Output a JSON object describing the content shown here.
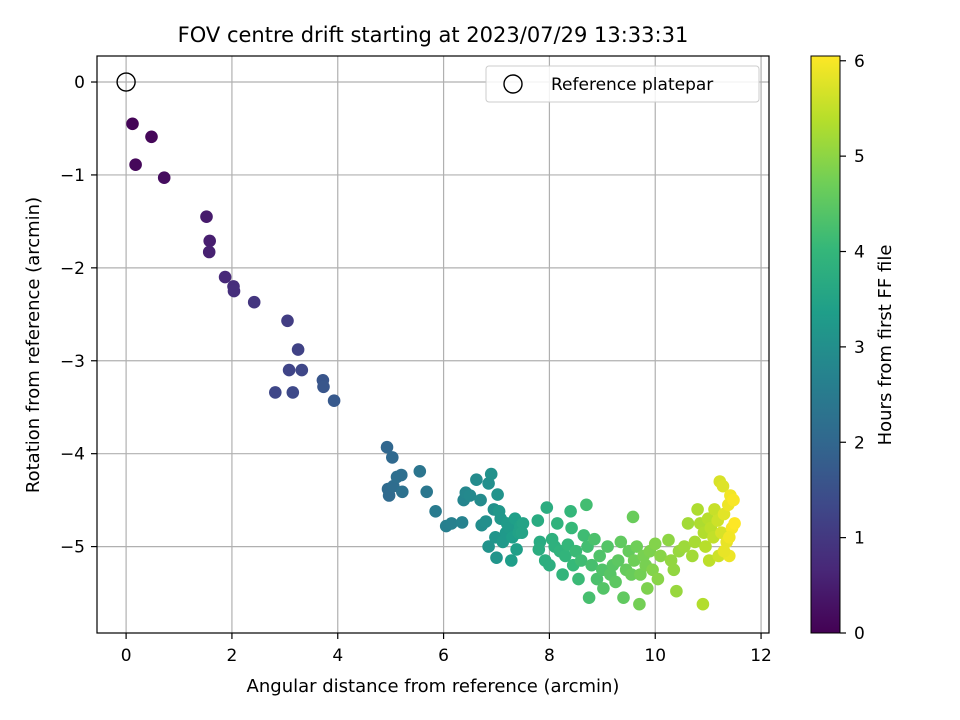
{
  "chart_data": {
    "type": "scatter",
    "title": "FOV centre drift starting at 2023/07/29 13:33:31",
    "xlabel": "Angular distance from reference (arcmin)",
    "ylabel": "Rotation from reference (arcmin)",
    "xlim": [
      -0.55,
      12.15
    ],
    "ylim": [
      -5.93,
      0.28
    ],
    "xticks": [
      0,
      2,
      4,
      6,
      8,
      10,
      12
    ],
    "yticks": [
      0,
      -1,
      -2,
      -3,
      -4,
      -5
    ],
    "xtick_labels": [
      "0",
      "2",
      "4",
      "6",
      "8",
      "10",
      "12"
    ],
    "ytick_labels": [
      "0",
      "−1",
      "−2",
      "−3",
      "−4",
      "−5"
    ],
    "grid": true,
    "legend": {
      "entries": [
        "Reference platepar"
      ],
      "placement": "top-right"
    },
    "reference_point": {
      "x": 0,
      "y": 0,
      "marker": "open-circle",
      "label": "Reference platepar"
    },
    "colorbar": {
      "label": "Hours from first FF file",
      "min": 0,
      "max": 6.05,
      "ticks": [
        0,
        1,
        2,
        3,
        4,
        5,
        6
      ],
      "tick_labels": [
        "0",
        "1",
        "2",
        "3",
        "4",
        "5",
        "6"
      ],
      "colormap": "viridis"
    },
    "colormap_stops": [
      "#440154",
      "#482878",
      "#3e4989",
      "#31688e",
      "#26828e",
      "#1f9e89",
      "#35b779",
      "#6ece58",
      "#b5de2b",
      "#fde725"
    ],
    "points": [
      [
        0.12,
        -0.45,
        0.05
      ],
      [
        0.48,
        -0.59,
        0.1
      ],
      [
        0.18,
        -0.89,
        0.12
      ],
      [
        0.72,
        -1.03,
        0.2
      ],
      [
        1.52,
        -1.45,
        0.45
      ],
      [
        1.58,
        -1.71,
        0.5
      ],
      [
        1.57,
        -1.83,
        0.55
      ],
      [
        1.87,
        -2.1,
        0.7
      ],
      [
        2.03,
        -2.2,
        0.8
      ],
      [
        2.04,
        -2.25,
        0.82
      ],
      [
        2.42,
        -2.37,
        0.95
      ],
      [
        3.05,
        -2.57,
        1.1
      ],
      [
        3.25,
        -2.88,
        1.2
      ],
      [
        3.08,
        -3.1,
        1.25
      ],
      [
        3.32,
        -3.1,
        1.3
      ],
      [
        2.82,
        -3.34,
        1.3
      ],
      [
        3.15,
        -3.34,
        1.35
      ],
      [
        3.72,
        -3.21,
        1.6
      ],
      [
        3.73,
        -3.28,
        1.62
      ],
      [
        3.93,
        -3.43,
        1.7
      ],
      [
        4.93,
        -3.93,
        2.0
      ],
      [
        5.03,
        -4.04,
        2.05
      ],
      [
        4.95,
        -4.38,
        2.1
      ],
      [
        4.97,
        -4.45,
        2.1
      ],
      [
        5.05,
        -4.35,
        2.15
      ],
      [
        5.12,
        -4.25,
        2.2
      ],
      [
        5.2,
        -4.23,
        2.2
      ],
      [
        5.22,
        -4.41,
        2.25
      ],
      [
        5.55,
        -4.19,
        2.35
      ],
      [
        5.68,
        -4.41,
        2.4
      ],
      [
        5.85,
        -4.62,
        2.5
      ],
      [
        6.05,
        -4.78,
        2.6
      ],
      [
        6.15,
        -4.75,
        2.65
      ],
      [
        6.35,
        -4.74,
        2.7
      ],
      [
        6.38,
        -4.5,
        2.75
      ],
      [
        6.42,
        -4.42,
        2.8
      ],
      [
        6.5,
        -4.45,
        2.85
      ],
      [
        6.62,
        -4.28,
        2.9
      ],
      [
        6.7,
        -4.5,
        2.9
      ],
      [
        6.72,
        -4.77,
        2.95
      ],
      [
        6.8,
        -4.73,
        3.0
      ],
      [
        6.85,
        -4.32,
        3.0
      ],
      [
        6.9,
        -4.22,
        3.05
      ],
      [
        6.95,
        -4.6,
        3.05
      ],
      [
        7.02,
        -4.44,
        3.1
      ],
      [
        6.85,
        -5.0,
        3.1
      ],
      [
        6.98,
        -4.9,
        3.15
      ],
      [
        7.0,
        -5.12,
        3.15
      ],
      [
        7.05,
        -4.62,
        3.2
      ],
      [
        7.08,
        -4.7,
        3.2
      ],
      [
        7.12,
        -4.95,
        3.25
      ],
      [
        7.18,
        -4.85,
        3.25
      ],
      [
        7.2,
        -4.75,
        3.3
      ],
      [
        7.25,
        -4.8,
        3.3
      ],
      [
        7.28,
        -5.15,
        3.35
      ],
      [
        7.3,
        -4.9,
        3.35
      ],
      [
        7.35,
        -4.7,
        3.4
      ],
      [
        7.38,
        -5.03,
        3.4
      ],
      [
        7.42,
        -4.85,
        3.45
      ],
      [
        7.45,
        -4.78,
        3.45
      ],
      [
        7.5,
        -4.75,
        3.5
      ],
      [
        7.48,
        -4.85,
        3.5
      ],
      [
        7.78,
        -4.72,
        3.7
      ],
      [
        7.82,
        -4.95,
        3.7
      ],
      [
        7.8,
        -5.03,
        3.75
      ],
      [
        7.95,
        -4.58,
        3.75
      ],
      [
        7.92,
        -5.15,
        3.8
      ],
      [
        8.0,
        -5.2,
        3.8
      ],
      [
        8.05,
        -4.92,
        3.85
      ],
      [
        8.1,
        -5.0,
        3.85
      ],
      [
        8.15,
        -4.75,
        3.9
      ],
      [
        8.2,
        -5.05,
        3.9
      ],
      [
        8.25,
        -5.3,
        3.95
      ],
      [
        8.3,
        -5.1,
        3.95
      ],
      [
        8.35,
        -4.98,
        4.0
      ],
      [
        8.4,
        -4.62,
        4.0
      ],
      [
        8.42,
        -4.8,
        4.05
      ],
      [
        8.45,
        -5.2,
        4.05
      ],
      [
        8.5,
        -5.05,
        4.1
      ],
      [
        8.55,
        -5.35,
        4.1
      ],
      [
        8.6,
        -5.15,
        4.15
      ],
      [
        8.65,
        -4.88,
        4.15
      ],
      [
        8.7,
        -4.55,
        4.2
      ],
      [
        8.72,
        -5.0,
        4.2
      ],
      [
        8.75,
        -5.55,
        4.25
      ],
      [
        8.8,
        -5.2,
        4.25
      ],
      [
        8.85,
        -4.92,
        4.3
      ],
      [
        8.9,
        -5.35,
        4.3
      ],
      [
        8.95,
        -5.1,
        4.35
      ],
      [
        9.0,
        -5.25,
        4.35
      ],
      [
        9.02,
        -5.45,
        4.4
      ],
      [
        9.1,
        -5.0,
        4.4
      ],
      [
        9.15,
        -5.3,
        4.45
      ],
      [
        9.2,
        -5.2,
        4.45
      ],
      [
        9.25,
        -5.38,
        4.5
      ],
      [
        9.3,
        -5.15,
        4.5
      ],
      [
        9.35,
        -4.95,
        4.55
      ],
      [
        9.4,
        -5.55,
        4.55
      ],
      [
        9.45,
        -5.25,
        4.6
      ],
      [
        9.5,
        -5.05,
        4.6
      ],
      [
        9.55,
        -5.3,
        4.65
      ],
      [
        9.58,
        -4.68,
        4.65
      ],
      [
        9.6,
        -5.15,
        4.7
      ],
      [
        9.65,
        -5.0,
        4.7
      ],
      [
        9.7,
        -5.62,
        4.75
      ],
      [
        9.72,
        -5.3,
        4.75
      ],
      [
        9.78,
        -5.1,
        4.8
      ],
      [
        9.82,
        -5.2,
        4.8
      ],
      [
        9.85,
        -5.45,
        4.85
      ],
      [
        9.9,
        -5.05,
        4.85
      ],
      [
        9.95,
        -5.25,
        4.9
      ],
      [
        10.0,
        -4.97,
        4.9
      ],
      [
        10.05,
        -5.35,
        4.95
      ],
      [
        10.1,
        -5.1,
        4.95
      ],
      [
        10.25,
        -4.93,
        5.0
      ],
      [
        10.3,
        -5.15,
        5.05
      ],
      [
        10.35,
        -5.25,
        5.05
      ],
      [
        10.4,
        -5.48,
        5.1
      ],
      [
        10.45,
        -5.05,
        5.1
      ],
      [
        10.55,
        -5.0,
        5.15
      ],
      [
        10.62,
        -4.75,
        5.2
      ],
      [
        10.7,
        -5.1,
        5.2
      ],
      [
        10.75,
        -4.95,
        5.25
      ],
      [
        10.8,
        -4.6,
        5.3
      ],
      [
        10.85,
        -4.75,
        5.3
      ],
      [
        10.9,
        -5.62,
        5.35
      ],
      [
        10.92,
        -4.85,
        5.35
      ],
      [
        10.95,
        -5.0,
        5.4
      ],
      [
        11.0,
        -4.7,
        5.4
      ],
      [
        11.02,
        -5.15,
        5.45
      ],
      [
        11.05,
        -4.8,
        5.45
      ],
      [
        11.1,
        -4.9,
        5.5
      ],
      [
        11.12,
        -4.6,
        5.55
      ],
      [
        11.18,
        -4.72,
        5.6
      ],
      [
        11.2,
        -5.1,
        5.6
      ],
      [
        11.22,
        -4.3,
        5.7
      ],
      [
        11.25,
        -4.85,
        5.7
      ],
      [
        11.28,
        -4.35,
        5.75
      ],
      [
        11.3,
        -4.65,
        5.8
      ],
      [
        11.35,
        -4.95,
        5.85
      ],
      [
        11.38,
        -4.55,
        5.9
      ],
      [
        11.4,
        -5.1,
        5.9
      ],
      [
        11.42,
        -4.45,
        5.95
      ],
      [
        11.45,
        -4.8,
        6.0
      ],
      [
        11.48,
        -4.5,
        6.0
      ],
      [
        11.5,
        -4.75,
        6.05
      ],
      [
        11.3,
        -5.05,
        5.85
      ],
      [
        11.4,
        -4.9,
        5.95
      ]
    ]
  }
}
